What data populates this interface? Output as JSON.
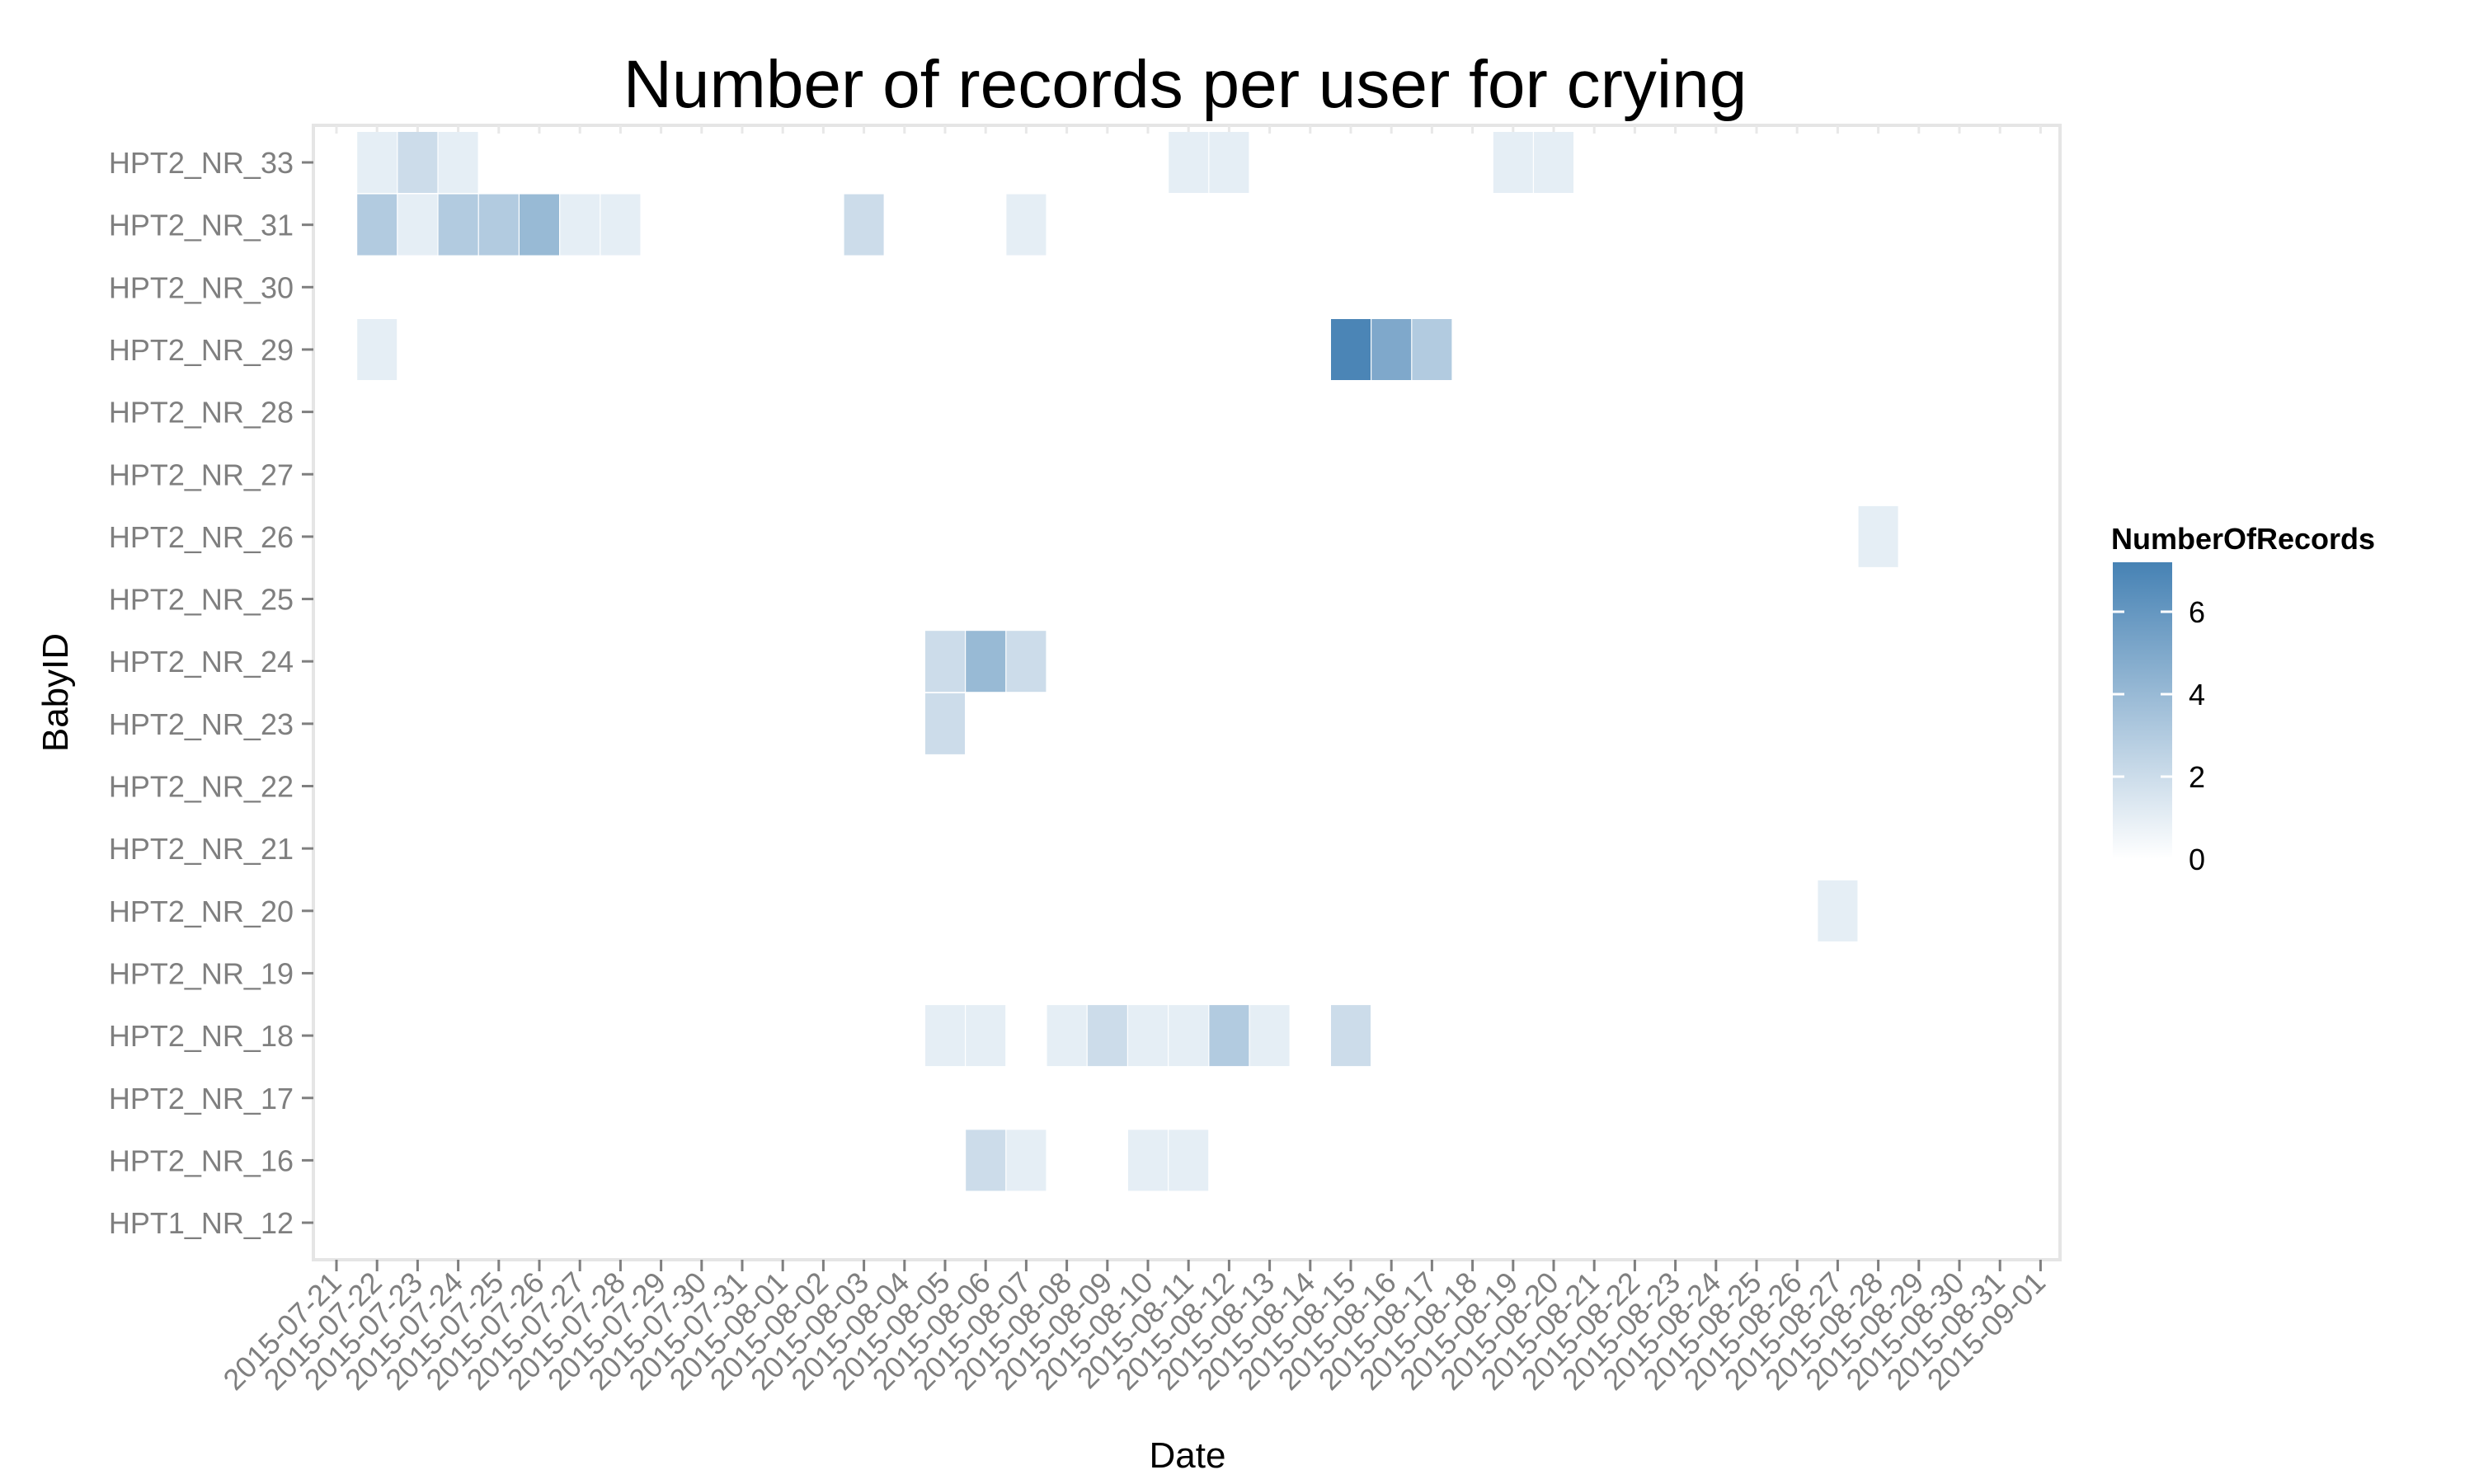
{
  "chart_data": {
    "type": "heatmap",
    "title": "Number of records per user for crying",
    "xlabel": "Date",
    "ylabel": "BabyID",
    "x_categories": [
      "2015-07-21",
      "2015-07-22",
      "2015-07-23",
      "2015-07-24",
      "2015-07-25",
      "2015-07-26",
      "2015-07-27",
      "2015-07-28",
      "2015-07-29",
      "2015-07-30",
      "2015-07-31",
      "2015-08-01",
      "2015-08-02",
      "2015-08-03",
      "2015-08-04",
      "2015-08-05",
      "2015-08-06",
      "2015-08-07",
      "2015-08-08",
      "2015-08-09",
      "2015-08-10",
      "2015-08-11",
      "2015-08-12",
      "2015-08-13",
      "2015-08-14",
      "2015-08-15",
      "2015-08-16",
      "2015-08-17",
      "2015-08-18",
      "2015-08-19",
      "2015-08-20",
      "2015-08-21",
      "2015-08-22",
      "2015-08-23",
      "2015-08-24",
      "2015-08-25",
      "2015-08-26",
      "2015-08-27",
      "2015-08-28",
      "2015-08-29",
      "2015-08-30",
      "2015-08-31",
      "2015-09-01"
    ],
    "y_categories": [
      "HPT2_NR_33",
      "HPT2_NR_31",
      "HPT2_NR_30",
      "HPT2_NR_29",
      "HPT2_NR_28",
      "HPT2_NR_27",
      "HPT2_NR_26",
      "HPT2_NR_25",
      "HPT2_NR_24",
      "HPT2_NR_23",
      "HPT2_NR_22",
      "HPT2_NR_21",
      "HPT2_NR_20",
      "HPT2_NR_19",
      "HPT2_NR_18",
      "HPT2_NR_17",
      "HPT2_NR_16",
      "HPT1_NR_12"
    ],
    "cells": [
      {
        "x": "2015-07-22",
        "y": "HPT2_NR_33",
        "value": 1
      },
      {
        "x": "2015-07-23",
        "y": "HPT2_NR_33",
        "value": 2
      },
      {
        "x": "2015-07-24",
        "y": "HPT2_NR_33",
        "value": 1
      },
      {
        "x": "2015-08-11",
        "y": "HPT2_NR_33",
        "value": 1
      },
      {
        "x": "2015-08-12",
        "y": "HPT2_NR_33",
        "value": 1
      },
      {
        "x": "2015-08-19",
        "y": "HPT2_NR_33",
        "value": 1
      },
      {
        "x": "2015-08-20",
        "y": "HPT2_NR_33",
        "value": 1
      },
      {
        "x": "2015-07-22",
        "y": "HPT2_NR_31",
        "value": 3
      },
      {
        "x": "2015-07-23",
        "y": "HPT2_NR_31",
        "value": 1
      },
      {
        "x": "2015-07-24",
        "y": "HPT2_NR_31",
        "value": 3
      },
      {
        "x": "2015-07-25",
        "y": "HPT2_NR_31",
        "value": 3
      },
      {
        "x": "2015-07-26",
        "y": "HPT2_NR_31",
        "value": 4
      },
      {
        "x": "2015-07-27",
        "y": "HPT2_NR_31",
        "value": 1
      },
      {
        "x": "2015-07-28",
        "y": "HPT2_NR_31",
        "value": 1
      },
      {
        "x": "2015-08-03",
        "y": "HPT2_NR_31",
        "value": 2
      },
      {
        "x": "2015-08-07",
        "y": "HPT2_NR_31",
        "value": 1
      },
      {
        "x": "2015-07-22",
        "y": "HPT2_NR_29",
        "value": 1
      },
      {
        "x": "2015-08-15",
        "y": "HPT2_NR_29",
        "value": 7
      },
      {
        "x": "2015-08-16",
        "y": "HPT2_NR_29",
        "value": 5
      },
      {
        "x": "2015-08-17",
        "y": "HPT2_NR_29",
        "value": 3
      },
      {
        "x": "2015-08-28",
        "y": "HPT2_NR_26",
        "value": 1
      },
      {
        "x": "2015-08-05",
        "y": "HPT2_NR_24",
        "value": 2
      },
      {
        "x": "2015-08-06",
        "y": "HPT2_NR_24",
        "value": 4
      },
      {
        "x": "2015-08-07",
        "y": "HPT2_NR_24",
        "value": 2
      },
      {
        "x": "2015-08-05",
        "y": "HPT2_NR_23",
        "value": 2
      },
      {
        "x": "2015-08-27",
        "y": "HPT2_NR_20",
        "value": 1
      },
      {
        "x": "2015-08-05",
        "y": "HPT2_NR_18",
        "value": 1
      },
      {
        "x": "2015-08-06",
        "y": "HPT2_NR_18",
        "value": 1
      },
      {
        "x": "2015-08-08",
        "y": "HPT2_NR_18",
        "value": 1
      },
      {
        "x": "2015-08-09",
        "y": "HPT2_NR_18",
        "value": 2
      },
      {
        "x": "2015-08-10",
        "y": "HPT2_NR_18",
        "value": 1
      },
      {
        "x": "2015-08-11",
        "y": "HPT2_NR_18",
        "value": 1
      },
      {
        "x": "2015-08-12",
        "y": "HPT2_NR_18",
        "value": 3
      },
      {
        "x": "2015-08-13",
        "y": "HPT2_NR_18",
        "value": 1
      },
      {
        "x": "2015-08-15",
        "y": "HPT2_NR_18",
        "value": 2
      },
      {
        "x": "2015-08-06",
        "y": "HPT2_NR_16",
        "value": 2
      },
      {
        "x": "2015-08-07",
        "y": "HPT2_NR_16",
        "value": 1
      },
      {
        "x": "2015-08-10",
        "y": "HPT2_NR_16",
        "value": 1
      },
      {
        "x": "2015-08-11",
        "y": "HPT2_NR_16",
        "value": 1
      }
    ],
    "legend": {
      "title": "NumberOfRecords",
      "ticks": [
        "0",
        "2",
        "4",
        "6"
      ],
      "min": 0,
      "max": 7.2,
      "low_color": "#ffffff",
      "high_color": "#4682b4",
      "placement": "right"
    },
    "grid": true,
    "colors": {
      "panel_border": "#e5e5e5",
      "grid": "#ebebeb",
      "tick_text": "#7f7f7f"
    }
  }
}
